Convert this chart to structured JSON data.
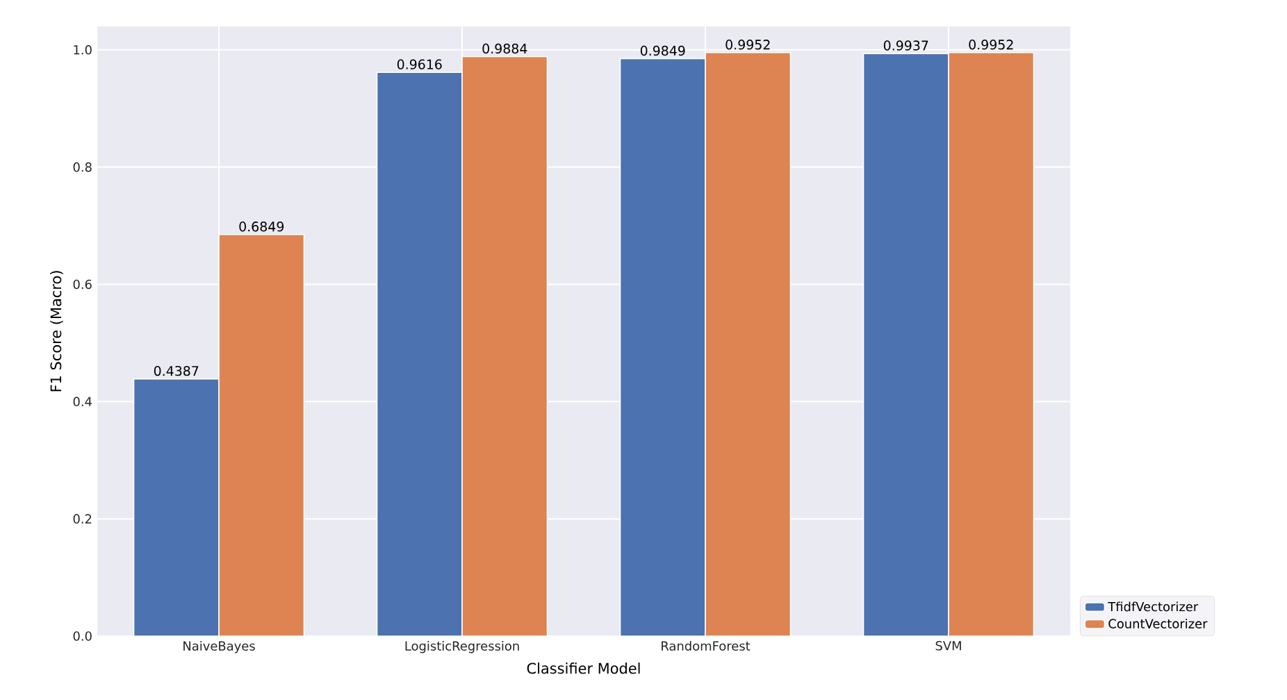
{
  "chart_data": {
    "type": "bar",
    "xlabel": "Classifier Model",
    "ylabel": "F1 Score (Macro)",
    "categories": [
      "NaiveBayes",
      "LogisticRegression",
      "RandomForest",
      "SVM"
    ],
    "series": [
      {
        "name": "TfidfVectorizer",
        "color": "#4c72b0",
        "values": [
          0.4387,
          0.9616,
          0.9849,
          0.9937
        ]
      },
      {
        "name": "CountVectorizer",
        "color": "#dd8452",
        "values": [
          0.6849,
          0.9884,
          0.9952,
          0.9952
        ]
      }
    ],
    "ylim": [
      0,
      1.04
    ],
    "yticks": [
      {
        "value": 0,
        "label": "0.0"
      },
      0.2,
      0.4,
      0.6,
      0.8,
      {
        "value": 1,
        "label": "1.0"
      }
    ],
    "grid": true,
    "legend": "bottom right",
    "data_labels": true
  }
}
